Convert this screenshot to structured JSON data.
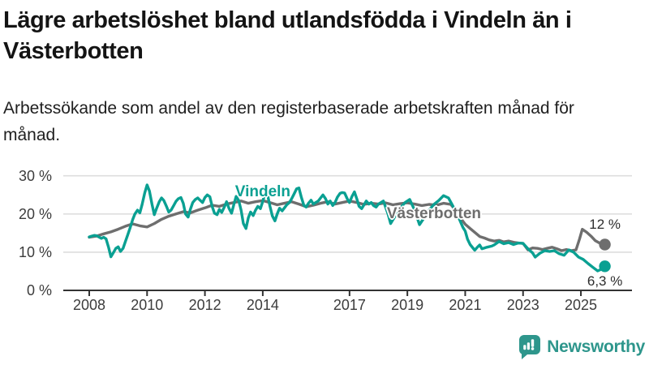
{
  "header": {
    "title": "Lägre arbetslöshet bland utlandsfödda i Vindeln än i Västerbotten",
    "subtitle": "Arbetssökande som andel av den registerbaserade arbetskraften månad för månad."
  },
  "footer": {
    "brand": "Newsworthy",
    "logo_icon": "newsworthy-speech-bubble-bar-chart-icon"
  },
  "colors": {
    "vindeln": "#0aa092",
    "vasterbotten": "#6e6e6e",
    "grid": "#dedede",
    "axis": "#333333",
    "tick_text": "#3c3c3c",
    "title_text": "#141414",
    "brand_teal": "#2e968c"
  },
  "chart_data": {
    "type": "line",
    "title": "Lägre arbetslöshet bland utlandsfödda i Vindeln än i Västerbotten",
    "subtitle": "Arbetssökande som andel av den registerbaserade arbetskraften månad för månad.",
    "xlabel": "",
    "ylabel": "",
    "grid": "horizontal",
    "legend_position": "inline-labels",
    "xlim": [
      2007.1,
      2026.8
    ],
    "ylim": [
      0,
      32
    ],
    "x_ticks": [
      2008,
      2010,
      2012,
      2014,
      2017,
      2019,
      2021,
      2023,
      2025
    ],
    "x_tick_labels": [
      "2008",
      "2010",
      "2012",
      "2014",
      "2017",
      "2019",
      "2021",
      "2023",
      "2025"
    ],
    "y_ticks": [
      0,
      10,
      20,
      30
    ],
    "y_tick_labels": [
      "0 %",
      "10 %",
      "20 %",
      "30 %"
    ],
    "series": [
      {
        "name": "Västerbotten",
        "color": "#6e6e6e",
        "end_label": "12 %",
        "end_label_side": "above",
        "label_anchor": [
          2019.92,
          20.0
        ],
        "points": [
          [
            2008.0,
            13.9
          ],
          [
            2008.25,
            14.2
          ],
          [
            2008.5,
            14.8
          ],
          [
            2008.75,
            15.3
          ],
          [
            2009.0,
            16.0
          ],
          [
            2009.25,
            16.8
          ],
          [
            2009.5,
            17.4
          ],
          [
            2009.75,
            16.9
          ],
          [
            2010.0,
            16.6
          ],
          [
            2010.25,
            17.5
          ],
          [
            2010.5,
            18.6
          ],
          [
            2010.75,
            19.4
          ],
          [
            2011.0,
            20.0
          ],
          [
            2011.25,
            20.6
          ],
          [
            2011.5,
            20.3
          ],
          [
            2011.75,
            21.0
          ],
          [
            2012.0,
            21.6
          ],
          [
            2012.25,
            22.3
          ],
          [
            2012.5,
            22.0
          ],
          [
            2012.75,
            22.6
          ],
          [
            2013.0,
            23.0
          ],
          [
            2013.25,
            23.4
          ],
          [
            2013.5,
            22.8
          ],
          [
            2013.75,
            23.2
          ],
          [
            2014.0,
            23.5
          ],
          [
            2014.25,
            23.0
          ],
          [
            2014.5,
            22.4
          ],
          [
            2014.75,
            22.8
          ],
          [
            2015.0,
            23.2
          ],
          [
            2015.25,
            22.6
          ],
          [
            2015.5,
            21.9
          ],
          [
            2015.75,
            22.3
          ],
          [
            2016.0,
            22.8
          ],
          [
            2016.25,
            23.2
          ],
          [
            2016.5,
            22.6
          ],
          [
            2016.75,
            23.0
          ],
          [
            2017.0,
            23.4
          ],
          [
            2017.25,
            23.0
          ],
          [
            2017.5,
            22.5
          ],
          [
            2017.75,
            22.8
          ],
          [
            2018.0,
            22.6
          ],
          [
            2018.25,
            22.9
          ],
          [
            2018.5,
            22.4
          ],
          [
            2018.75,
            22.7
          ],
          [
            2019.0,
            22.9
          ],
          [
            2019.25,
            22.6
          ],
          [
            2019.5,
            22.2
          ],
          [
            2019.75,
            22.5
          ],
          [
            2020.0,
            22.3
          ],
          [
            2020.25,
            22.8
          ],
          [
            2020.5,
            22.5
          ],
          [
            2020.67,
            21.0
          ],
          [
            2020.83,
            19.0
          ],
          [
            2021.0,
            17.3
          ],
          [
            2021.17,
            16.2
          ],
          [
            2021.33,
            15.2
          ],
          [
            2021.5,
            14.1
          ],
          [
            2021.67,
            13.7
          ],
          [
            2021.83,
            13.2
          ],
          [
            2022.0,
            12.9
          ],
          [
            2022.17,
            13.1
          ],
          [
            2022.33,
            12.7
          ],
          [
            2022.5,
            12.9
          ],
          [
            2022.67,
            12.6
          ],
          [
            2022.83,
            12.4
          ],
          [
            2023.0,
            12.3
          ],
          [
            2023.17,
            10.6
          ],
          [
            2023.33,
            11.1
          ],
          [
            2023.5,
            11.0
          ],
          [
            2023.67,
            10.7
          ],
          [
            2023.83,
            11.0
          ],
          [
            2024.0,
            11.3
          ],
          [
            2024.17,
            10.9
          ],
          [
            2024.33,
            10.4
          ],
          [
            2024.5,
            10.7
          ],
          [
            2024.67,
            10.4
          ],
          [
            2024.83,
            10.6
          ],
          [
            2024.95,
            13.4
          ],
          [
            2025.05,
            16.0
          ],
          [
            2025.2,
            15.2
          ],
          [
            2025.35,
            14.2
          ],
          [
            2025.5,
            13.0
          ],
          [
            2025.67,
            12.3
          ],
          [
            2025.83,
            12.0
          ]
        ]
      },
      {
        "name": "Vindeln",
        "color": "#0aa092",
        "end_label": "6,3 %",
        "end_label_side": "below",
        "label_anchor": [
          2014.0,
          25.7
        ],
        "points": [
          [
            2008.0,
            14.0
          ],
          [
            2008.08,
            14.2
          ],
          [
            2008.17,
            14.4
          ],
          [
            2008.25,
            14.3
          ],
          [
            2008.33,
            14.0
          ],
          [
            2008.42,
            13.6
          ],
          [
            2008.5,
            13.9
          ],
          [
            2008.58,
            13.5
          ],
          [
            2008.67,
            11.2
          ],
          [
            2008.75,
            8.8
          ],
          [
            2008.83,
            9.8
          ],
          [
            2008.92,
            11.0
          ],
          [
            2009.0,
            11.4
          ],
          [
            2009.08,
            10.2
          ],
          [
            2009.17,
            11.0
          ],
          [
            2009.25,
            12.8
          ],
          [
            2009.33,
            14.5
          ],
          [
            2009.42,
            16.5
          ],
          [
            2009.5,
            18.5
          ],
          [
            2009.58,
            20.0
          ],
          [
            2009.67,
            21.0
          ],
          [
            2009.75,
            20.3
          ],
          [
            2009.83,
            22.5
          ],
          [
            2009.92,
            25.5
          ],
          [
            2010.0,
            27.6
          ],
          [
            2010.08,
            26.0
          ],
          [
            2010.17,
            22.5
          ],
          [
            2010.25,
            19.8
          ],
          [
            2010.33,
            21.5
          ],
          [
            2010.42,
            23.2
          ],
          [
            2010.5,
            24.2
          ],
          [
            2010.58,
            23.5
          ],
          [
            2010.67,
            22.0
          ],
          [
            2010.75,
            20.5
          ],
          [
            2010.83,
            21.0
          ],
          [
            2010.92,
            22.2
          ],
          [
            2011.0,
            23.3
          ],
          [
            2011.08,
            24.0
          ],
          [
            2011.17,
            24.3
          ],
          [
            2011.25,
            22.8
          ],
          [
            2011.33,
            20.0
          ],
          [
            2011.42,
            19.2
          ],
          [
            2011.5,
            21.3
          ],
          [
            2011.58,
            23.0
          ],
          [
            2011.67,
            23.8
          ],
          [
            2011.75,
            24.2
          ],
          [
            2011.83,
            23.6
          ],
          [
            2011.92,
            23.0
          ],
          [
            2012.0,
            24.3
          ],
          [
            2012.08,
            25.0
          ],
          [
            2012.17,
            24.5
          ],
          [
            2012.25,
            22.0
          ],
          [
            2012.33,
            20.2
          ],
          [
            2012.42,
            19.8
          ],
          [
            2012.5,
            21.2
          ],
          [
            2012.58,
            20.4
          ],
          [
            2012.67,
            21.8
          ],
          [
            2012.75,
            23.2
          ],
          [
            2012.83,
            21.5
          ],
          [
            2012.92,
            20.2
          ],
          [
            2013.0,
            22.5
          ],
          [
            2013.08,
            24.6
          ],
          [
            2013.17,
            23.5
          ],
          [
            2013.25,
            21.0
          ],
          [
            2013.33,
            17.5
          ],
          [
            2013.42,
            16.2
          ],
          [
            2013.5,
            19.0
          ],
          [
            2013.58,
            20.5
          ],
          [
            2013.67,
            19.6
          ],
          [
            2013.75,
            21.0
          ],
          [
            2013.83,
            22.0
          ],
          [
            2013.92,
            21.4
          ],
          [
            2014.0,
            23.3
          ],
          [
            2014.08,
            25.6
          ],
          [
            2014.17,
            24.8
          ],
          [
            2014.25,
            22.0
          ],
          [
            2014.33,
            19.5
          ],
          [
            2014.42,
            18.2
          ],
          [
            2014.5,
            20.0
          ],
          [
            2014.58,
            21.5
          ],
          [
            2014.67,
            20.8
          ],
          [
            2014.75,
            21.6
          ],
          [
            2014.83,
            22.4
          ],
          [
            2014.92,
            23.0
          ],
          [
            2015.0,
            24.0
          ],
          [
            2015.08,
            25.2
          ],
          [
            2015.17,
            26.6
          ],
          [
            2015.25,
            26.8
          ],
          [
            2015.33,
            24.5
          ],
          [
            2015.42,
            22.3
          ],
          [
            2015.5,
            21.8
          ],
          [
            2015.58,
            22.8
          ],
          [
            2015.67,
            23.6
          ],
          [
            2015.75,
            22.6
          ],
          [
            2015.83,
            23.0
          ],
          [
            2015.92,
            23.4
          ],
          [
            2016.0,
            24.2
          ],
          [
            2016.08,
            25.0
          ],
          [
            2016.17,
            24.0
          ],
          [
            2016.25,
            22.6
          ],
          [
            2016.33,
            23.4
          ],
          [
            2016.42,
            22.2
          ],
          [
            2016.5,
            23.0
          ],
          [
            2016.58,
            24.4
          ],
          [
            2016.67,
            25.4
          ],
          [
            2016.75,
            25.6
          ],
          [
            2016.83,
            25.5
          ],
          [
            2016.92,
            24.0
          ],
          [
            2017.0,
            23.0
          ],
          [
            2017.08,
            24.5
          ],
          [
            2017.17,
            25.8
          ],
          [
            2017.25,
            24.0
          ],
          [
            2017.33,
            22.0
          ],
          [
            2017.42,
            21.4
          ],
          [
            2017.5,
            22.4
          ],
          [
            2017.58,
            23.4
          ],
          [
            2017.67,
            22.6
          ],
          [
            2017.75,
            23.0
          ],
          [
            2017.83,
            22.2
          ],
          [
            2017.92,
            21.8
          ],
          [
            2018.0,
            22.6
          ],
          [
            2018.17,
            23.4
          ],
          [
            2018.33,
            20.0
          ],
          [
            2018.42,
            17.5
          ],
          [
            2018.58,
            19.5
          ],
          [
            2018.75,
            21.5
          ],
          [
            2018.92,
            23.0
          ],
          [
            2019.08,
            23.8
          ],
          [
            2019.25,
            21.0
          ],
          [
            2019.42,
            17.2
          ],
          [
            2019.58,
            19.0
          ],
          [
            2019.75,
            21.0
          ],
          [
            2019.92,
            22.5
          ],
          [
            2020.08,
            23.5
          ],
          [
            2020.25,
            24.8
          ],
          [
            2020.42,
            24.2
          ],
          [
            2020.58,
            22.0
          ],
          [
            2020.75,
            19.5
          ],
          [
            2020.92,
            16.5
          ],
          [
            2021.0,
            15.5
          ],
          [
            2021.08,
            13.4
          ],
          [
            2021.17,
            12.0
          ],
          [
            2021.33,
            10.5
          ],
          [
            2021.42,
            11.3
          ],
          [
            2021.5,
            11.9
          ],
          [
            2021.58,
            10.9
          ],
          [
            2021.75,
            11.3
          ],
          [
            2021.92,
            11.6
          ],
          [
            2022.0,
            11.9
          ],
          [
            2022.17,
            12.8
          ],
          [
            2022.33,
            12.2
          ],
          [
            2022.5,
            12.5
          ],
          [
            2022.67,
            12.0
          ],
          [
            2022.83,
            12.4
          ],
          [
            2023.0,
            12.3
          ],
          [
            2023.17,
            10.9
          ],
          [
            2023.33,
            9.8
          ],
          [
            2023.42,
            8.7
          ],
          [
            2023.58,
            9.7
          ],
          [
            2023.75,
            10.4
          ],
          [
            2023.92,
            10.2
          ],
          [
            2024.08,
            10.4
          ],
          [
            2024.25,
            9.6
          ],
          [
            2024.42,
            9.2
          ],
          [
            2024.58,
            10.6
          ],
          [
            2024.75,
            10.0
          ],
          [
            2024.92,
            8.7
          ],
          [
            2025.08,
            8.1
          ],
          [
            2025.25,
            7.0
          ],
          [
            2025.42,
            6.0
          ],
          [
            2025.58,
            5.1
          ],
          [
            2025.7,
            5.5
          ],
          [
            2025.83,
            6.3
          ]
        ]
      }
    ]
  }
}
